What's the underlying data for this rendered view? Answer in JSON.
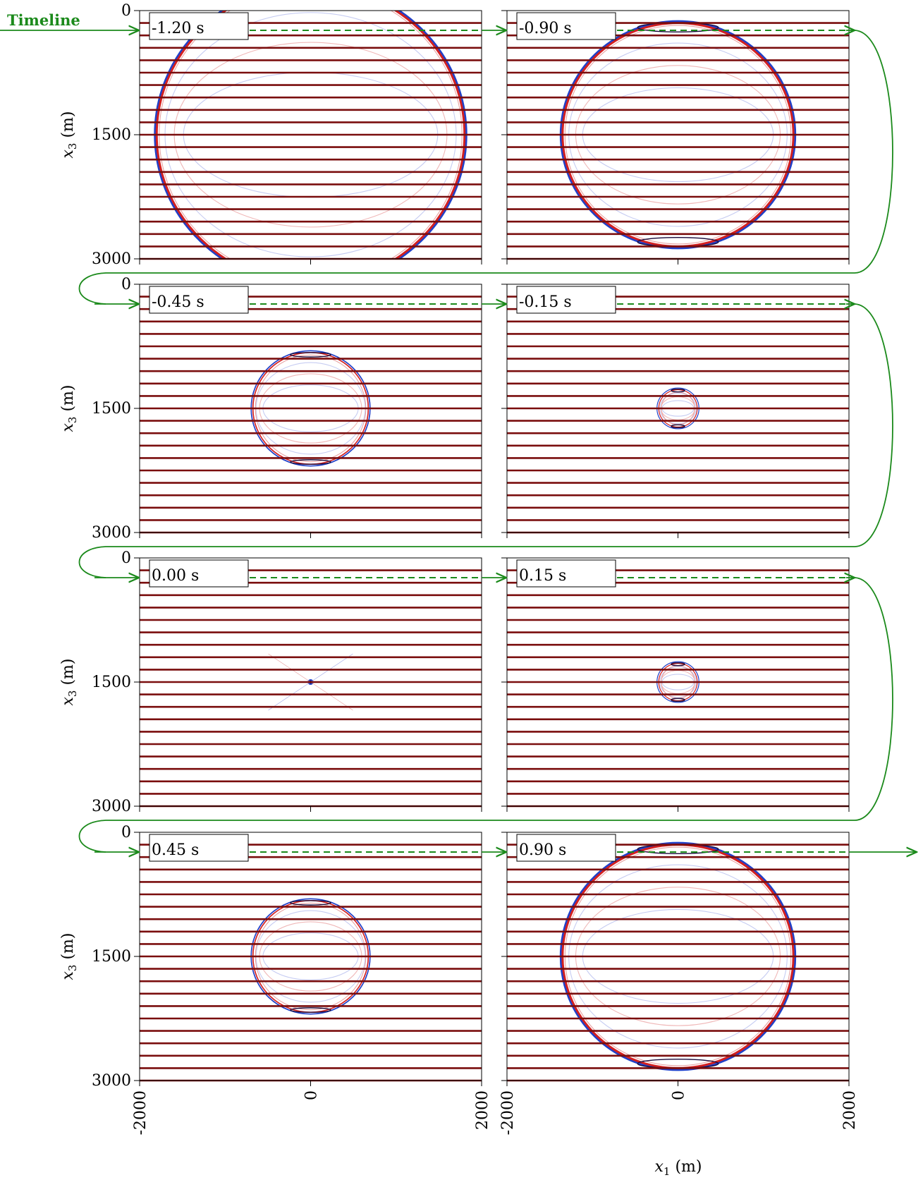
{
  "timeline_label": "Timeline",
  "x_axis": {
    "label_var": "x",
    "label_sub": "1",
    "label_unit": " (m)",
    "ticks": [
      -2000,
      0,
      2000
    ],
    "tick_labels": [
      "-2000",
      "0",
      "2000"
    ],
    "range": [
      -2000,
      2000
    ]
  },
  "y_axis": {
    "label_var": "x",
    "label_sub": "3",
    "label_unit": " (m)",
    "ticks": [
      0,
      1500,
      3000
    ],
    "tick_labels": [
      "0",
      "1500",
      "3000"
    ],
    "range": [
      0,
      3000
    ]
  },
  "layers": {
    "count": 20,
    "first_depth": 150,
    "spacing": 150,
    "color": "#7a0d0d"
  },
  "panels": [
    {
      "time": -1.2,
      "time_label": "-1.20 s",
      "front_radius": 1800
    },
    {
      "time": -0.9,
      "time_label": "-0.90 s",
      "front_radius": 1350
    },
    {
      "time": -0.45,
      "time_label": "-0.45 s",
      "front_radius": 675
    },
    {
      "time": -0.15,
      "time_label": "-0.15 s",
      "front_radius": 225
    },
    {
      "time": 0.0,
      "time_label": "0.00 s",
      "front_radius": 0
    },
    {
      "time": 0.15,
      "time_label": "0.15 s",
      "front_radius": 225
    },
    {
      "time": 0.45,
      "time_label": "0.45 s",
      "front_radius": 675
    },
    {
      "time": 0.9,
      "time_label": "0.90 s",
      "front_radius": 1350
    }
  ],
  "source": {
    "x": 0,
    "depth": 1500
  },
  "colors": {
    "timeline": "#1b8a1b",
    "wave_positive": "#d42020",
    "wave_negative": "#2040c8",
    "layer": "#7a0d0d"
  }
}
